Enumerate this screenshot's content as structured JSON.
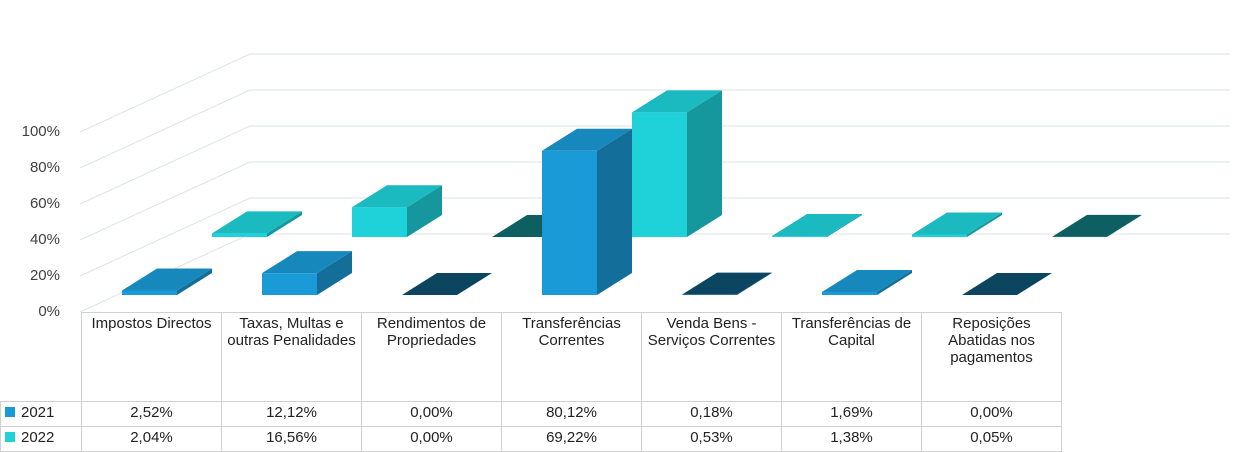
{
  "chart_data": {
    "type": "bar3d",
    "categories": [
      "Impostos Directos",
      "Taxas, Multas e outras Penalidades",
      "Rendimentos de Propriedades",
      "Transferências Correntes",
      "Venda Bens - Serviços Correntes",
      "Transferências de Capital",
      "Reposições Abatidas nos pagamentos"
    ],
    "series": [
      {
        "name": "2021",
        "color": "#1a9ad6",
        "values": [
          2.52,
          12.12,
          0.0,
          80.12,
          0.18,
          1.69,
          0.0
        ],
        "value_labels": [
          "2,52%",
          "12,12%",
          "0,00%",
          "80,12%",
          "0,18%",
          "1,69%",
          "0,00%"
        ]
      },
      {
        "name": "2022",
        "color": "#1fd2da",
        "values": [
          2.04,
          16.56,
          0.0,
          69.22,
          0.53,
          1.38,
          0.05
        ],
        "value_labels": [
          "2,04%",
          "16,56%",
          "0,00%",
          "69,22%",
          "0,53%",
          "1,38%",
          "0,05%"
        ]
      }
    ],
    "ylim": [
      0,
      100
    ],
    "yticks": [
      {
        "value": 0,
        "label": "0%"
      },
      {
        "value": 20,
        "label": "20%"
      },
      {
        "value": 40,
        "label": "40%"
      },
      {
        "value": 60,
        "label": "60%"
      },
      {
        "value": 80,
        "label": "80%"
      },
      {
        "value": 100,
        "label": "100%"
      }
    ],
    "grid": true
  }
}
